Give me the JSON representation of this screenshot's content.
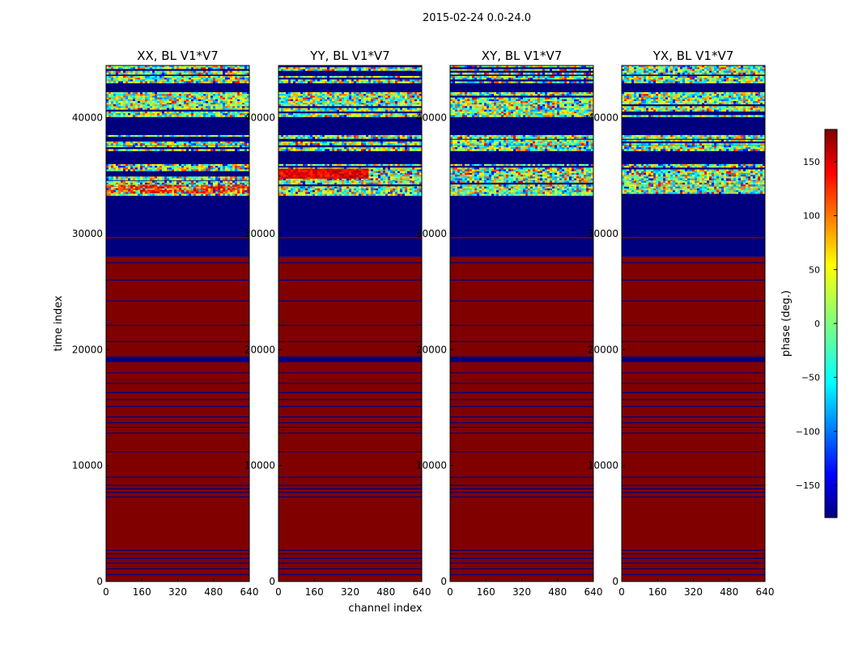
{
  "figure_title": "2015-02-24 0.0-24.0",
  "chart_data": {
    "type": "heatmap",
    "suptitle": "2015-02-24 0.0-24.0",
    "xlabel": "channel index",
    "ylabel": "time index",
    "xlim": [
      0,
      640
    ],
    "ylim": [
      0,
      44500
    ],
    "xticks": [
      0,
      160,
      320,
      480,
      640
    ],
    "yticks": [
      0,
      10000,
      20000,
      30000,
      40000
    ],
    "panels": [
      {
        "title": "XX, BL V1*V7"
      },
      {
        "title": "YY, BL V1*V7"
      },
      {
        "title": "XY, BL V1*V7"
      },
      {
        "title": "YX, BL V1*V7"
      }
    ],
    "colorbar": {
      "label": "phase (deg.)",
      "range": [
        -180,
        180
      ],
      "ticks": [
        -150,
        -100,
        -50,
        0,
        50,
        100,
        150
      ],
      "colormap": "jet"
    },
    "regions": [
      {
        "from": 0,
        "to": 28000,
        "value_deg": 180,
        "note": "constant phase with thin -180 rows"
      },
      {
        "from": 19000,
        "to": 19400,
        "value_deg": -180
      },
      {
        "from": 28000,
        "to": 33200,
        "value_deg": -180
      },
      {
        "from": 33200,
        "to": 44500,
        "value_deg": "noisy"
      }
    ]
  }
}
